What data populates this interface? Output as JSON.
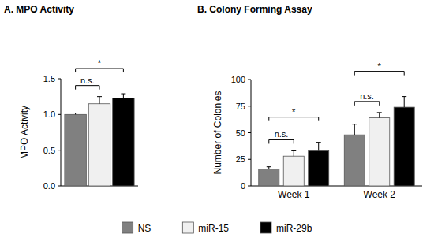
{
  "chart_data": [
    {
      "type": "bar",
      "title": "A. MPO Activity",
      "y_label": "MPO Activity",
      "categories": [
        null
      ],
      "series": [
        {
          "color": "#808080",
          "values": [
            1.0
          ],
          "errors": [
            0.02
          ]
        },
        {
          "color": "#f0f0f0",
          "values": [
            1.15
          ],
          "errors": [
            0.1
          ]
        },
        {
          "color": "#000000",
          "values": [
            1.23
          ],
          "errors": [
            0.06
          ]
        }
      ],
      "ylim": [
        0,
        1.5
      ],
      "yticks": [
        {
          "value": 0,
          "label": "0.0"
        },
        {
          "value": 0.5,
          "label": "0.5"
        },
        {
          "value": 1,
          "label": "1.0"
        },
        {
          "value": 1.5,
          "label": "1.5"
        }
      ],
      "tick_labels": "y",
      "annotations": [
        {
          "text": "n.s.",
          "category": 0,
          "series": [
            0,
            1
          ]
        },
        {
          "text": "*",
          "category": 0,
          "series": [
            0,
            2
          ]
        }
      ]
    },
    {
      "type": "bar",
      "title": "B. Colony Forming Assay",
      "y_label": "Number of Colonies",
      "categories": [
        "Week 1",
        "Week 2"
      ],
      "series": [
        {
          "name": "NS",
          "color": "#808080",
          "values": [
            16,
            48
          ],
          "errors": [
            2,
            10
          ]
        },
        {
          "name": "miR-15",
          "color": "#f0f0f0",
          "values": [
            28,
            64
          ],
          "errors": [
            5,
            5
          ]
        },
        {
          "name": "miR-29b",
          "color": "#000000",
          "values": [
            33,
            74
          ],
          "errors": [
            8,
            10
          ]
        }
      ],
      "ylim": [
        0,
        100
      ],
      "yticks": [
        0,
        25,
        50,
        75,
        100
      ],
      "legend": "bottom",
      "annotations": [
        {
          "text": "n.s.",
          "category": 0,
          "series": [
            0,
            1
          ]
        },
        {
          "text": "*",
          "category": 0,
          "series": [
            0,
            2
          ]
        },
        {
          "text": "n.s.",
          "category": 1,
          "series": [
            0,
            1
          ]
        },
        {
          "text": "*",
          "category": 1,
          "series": [
            0,
            2
          ]
        }
      ]
    }
  ]
}
